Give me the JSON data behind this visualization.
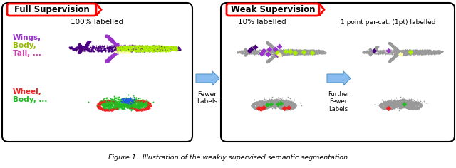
{
  "box1_title": "Full Supervision",
  "box1_subtitle": "100% labelled",
  "box2_title": "Weak Supervision",
  "box2_subtitle_left": "10% labelled",
  "box2_subtitle_right": "1 point per-cat. (1pt) labelled",
  "arrow1_label": "Fewer\nLabels",
  "arrow2_label": "Further\nFewer\nLabels",
  "caption": "Figure 1.  Illustration of the weakly supervised semantic segmentation",
  "colors": {
    "bg": "#FFFFFF",
    "box_border": "#000000",
    "title_border": "#FF0000",
    "purple_wing": "#9933CC",
    "dark_purple_body": "#4B0082",
    "lime_body": "#AAEE00",
    "pink_tail": "#DD44AA",
    "cream_engine": "#FFFFAA",
    "red_wheel": "#EE2222",
    "green_body": "#22BB22",
    "blue_seat": "#2255EE",
    "gray": "#999999",
    "arrow_fill": "#88BBEE",
    "arrow_edge": "#5599CC"
  },
  "fig_width": 6.4,
  "fig_height": 2.36
}
